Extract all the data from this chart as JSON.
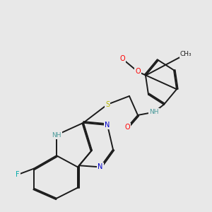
{
  "bg_color": "#e8e8e8",
  "bond_color": "#1a1a1a",
  "atom_colors": {
    "N": "#0000cd",
    "O": "#ff0000",
    "S": "#b8b800",
    "F": "#00aaaa",
    "NH": "#4a9a9a",
    "C": "#1a1a1a"
  },
  "lw": 1.4,
  "dbo": 0.055,
  "fs": 7.0
}
